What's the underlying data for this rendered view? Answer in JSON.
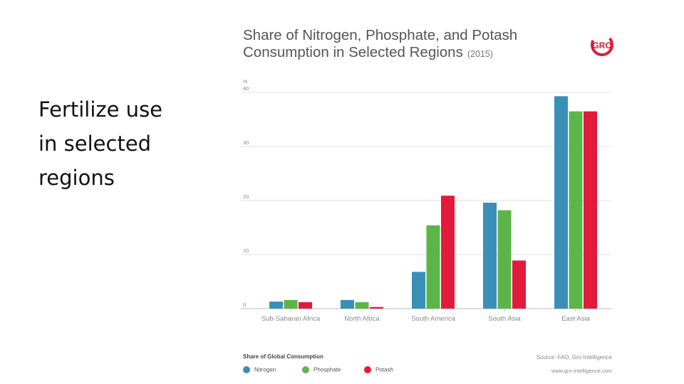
{
  "slide": {
    "lines": [
      "Fertilize use",
      "in selected",
      "regions"
    ]
  },
  "header": {
    "title_line1": "Share of Nitrogen, Phosphate, and Potash",
    "title_line2": "Consumption in Selected Regions",
    "year": "(2015)",
    "logo": "GRO"
  },
  "chart_data": {
    "type": "bar",
    "title": "Share of Nitrogen, Phosphate, and Potash Consumption in Selected Regions (2015)",
    "ylabel": "%",
    "xlabel": "",
    "ylim": [
      0,
      40
    ],
    "yticks": [
      0,
      10,
      20,
      30,
      40
    ],
    "grid": true,
    "categories": [
      "Sub-Saharan Africa",
      "North Africa",
      "South America",
      "South Asia",
      "East Asia"
    ],
    "series": [
      {
        "name": "Nitrogen",
        "color": "#3a8fb7",
        "values": [
          1.3,
          1.6,
          6.8,
          19.6,
          39.3
        ]
      },
      {
        "name": "Phosphate",
        "color": "#5cb548",
        "values": [
          1.6,
          1.2,
          15.4,
          18.2,
          36.5
        ]
      },
      {
        "name": "Potash",
        "color": "#e21b3c",
        "values": [
          1.2,
          0.3,
          20.9,
          8.9,
          36.5
        ]
      }
    ]
  },
  "legend": {
    "title": "Share of Global Consumption",
    "items": [
      {
        "label": "Nitrogen",
        "color": "#3a8fb7"
      },
      {
        "label": "Phosphate",
        "color": "#5cb548"
      },
      {
        "label": "Potash",
        "color": "#e21b3c"
      }
    ]
  },
  "footer": {
    "source": "Source: FAO, Gro Intelligence",
    "url": "www.gro-intelligence.com"
  }
}
